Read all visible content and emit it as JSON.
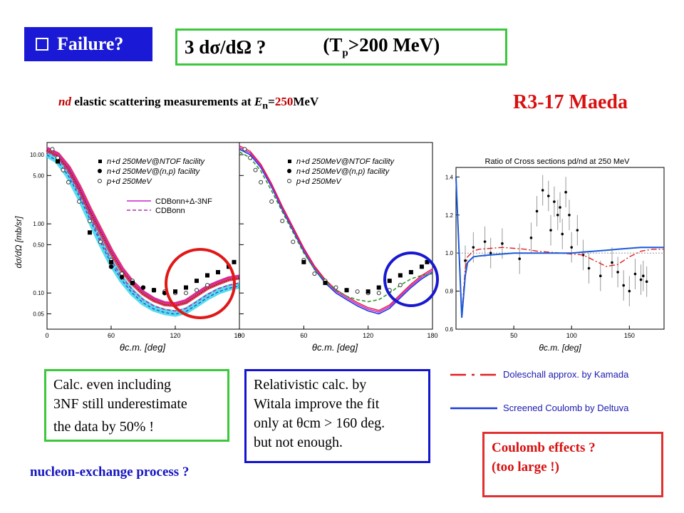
{
  "header": {
    "badge": "Failure?",
    "eq_prefix": "3 dσ/dΩ  ?",
    "tp_open": "(T",
    "tp_sub": "p",
    "tp_rest": ">200 MeV)"
  },
  "subtitle": {
    "nd": "nd",
    "text1": " elastic scattering measurements at ",
    "E": "E",
    "E_sub": "n",
    "eq": "=",
    "value": "250",
    "unit": "MeV"
  },
  "author": "R3-17 Maeda",
  "boxes": {
    "green": [
      "Calc. even including",
      "3NF still underestimate",
      "the data by 50% !"
    ],
    "blue": [
      "Relativistic calc. by",
      "Witala  improve the fit",
      "only at θcm > 160 deg.",
      "but not enough."
    ],
    "red": [
      "Coulomb effects ?",
      "(too large !)"
    ]
  },
  "nucleon": "nucleon-exchange process ?",
  "legend_right": {
    "doleschall": "Doleschall approx. by Kamada",
    "screened": "Screened Coulomb by Deltuva"
  },
  "colors": {
    "badge": "#1a1ad6",
    "green_box": "#3cc83c",
    "blue_box": "#1414d0",
    "red": "#d81010",
    "cdbonn_3nf": "#cc22cc",
    "cdbonn": "#b030b0",
    "rel_green": "#2a9a2a",
    "ratio_blue": "#1a5ad8",
    "ratio_red": "#e02020"
  },
  "chart_data": [
    {
      "type": "scatter",
      "xlabel": "θc.m. [deg]",
      "ylabel": "dσ/dΩ [mb/sr]",
      "ylog": true,
      "xlim": [
        0,
        180
      ],
      "ylim": [
        0.03,
        15
      ],
      "xticks": [
        "0",
        "60",
        "120",
        "180"
      ],
      "yticks": [
        "10.00",
        "5.00",
        "1.00",
        "0.50",
        "0.10",
        "0.05"
      ],
      "legend": {
        "ntof": "n+d 250MeV@NTOF facility",
        "np": "n+d 250MeV@(n,p) facility",
        "pd": "p+d 250MeV",
        "cdbonn_3nf": "CDBonn+Δ-3NF",
        "cdbonn": "CDBonn"
      },
      "series": [
        {
          "name": "n+d 250MeV@NTOF facility",
          "x": [
            10,
            40,
            60,
            80,
            100,
            120,
            130,
            140,
            150,
            160,
            170,
            175
          ],
          "y": [
            8.0,
            0.75,
            0.28,
            0.14,
            0.11,
            0.105,
            0.12,
            0.15,
            0.18,
            0.2,
            0.24,
            0.28
          ]
        },
        {
          "name": "n+d 250MeV@(n,p) facility",
          "x": [
            60,
            70,
            80,
            90,
            100,
            110
          ],
          "y": [
            0.24,
            0.17,
            0.14,
            0.12,
            0.11,
            0.1
          ]
        },
        {
          "name": "p+d 250MeV",
          "x": [
            5,
            10,
            15,
            20,
            30,
            40,
            50,
            60,
            70,
            80,
            90,
            100,
            110,
            120,
            130,
            140,
            150
          ],
          "y": [
            12,
            9,
            6,
            4,
            2.1,
            1.1,
            0.55,
            0.3,
            0.19,
            0.15,
            0.12,
            0.11,
            0.105,
            0.1,
            0.1,
            0.11,
            0.13
          ]
        },
        {
          "name": "CDBonn+Δ-3NF",
          "x": [
            0,
            10,
            20,
            30,
            40,
            50,
            60,
            70,
            80,
            90,
            100,
            110,
            120,
            130,
            140,
            150,
            160,
            170,
            180
          ],
          "y": [
            12,
            10,
            6.5,
            3.4,
            1.6,
            0.8,
            0.4,
            0.22,
            0.14,
            0.1,
            0.08,
            0.07,
            0.068,
            0.075,
            0.095,
            0.12,
            0.14,
            0.16,
            0.17
          ]
        },
        {
          "name": "CDBonn",
          "x": [
            0,
            10,
            20,
            30,
            40,
            50,
            60,
            70,
            80,
            90,
            100,
            110,
            120,
            130,
            140,
            150,
            160,
            170,
            180
          ],
          "y": [
            11,
            9,
            5.5,
            2.8,
            1.3,
            0.6,
            0.3,
            0.17,
            0.11,
            0.08,
            0.065,
            0.058,
            0.055,
            0.06,
            0.075,
            0.095,
            0.115,
            0.13,
            0.14
          ]
        }
      ]
    },
    {
      "type": "scatter",
      "xlabel": "θc.m. [deg]",
      "ylog": true,
      "xlim": [
        0,
        180
      ],
      "ylim": [
        0.03,
        15
      ],
      "xticks": [
        "0",
        "60",
        "120",
        "180"
      ],
      "legend": {
        "ntof": "n+d 250MeV@NTOF facility",
        "np": "n+d 250MeV@(n,p) facility",
        "pd": "p+d 250MeV"
      },
      "series": [
        {
          "name": "n+d 250MeV@NTOF facility",
          "x": [
            60,
            80,
            100,
            120,
            130,
            140,
            150,
            160,
            170,
            175
          ],
          "y": [
            0.28,
            0.14,
            0.11,
            0.105,
            0.12,
            0.15,
            0.18,
            0.2,
            0.24,
            0.28
          ]
        },
        {
          "name": "p+d 250MeV",
          "x": [
            5,
            10,
            15,
            20,
            30,
            40,
            50,
            60,
            70,
            80,
            90,
            100,
            110,
            120,
            130,
            140,
            150
          ],
          "y": [
            12,
            9,
            6,
            4,
            2.1,
            1.1,
            0.55,
            0.3,
            0.19,
            0.15,
            0.12,
            0.11,
            0.105,
            0.1,
            0.1,
            0.11,
            0.13
          ]
        },
        {
          "name": "relativistic",
          "x": [
            0,
            10,
            20,
            30,
            40,
            50,
            60,
            70,
            80,
            90,
            100,
            110,
            120,
            130,
            140,
            150,
            160,
            170,
            180
          ],
          "y": [
            12,
            10,
            6.5,
            3.4,
            1.6,
            0.8,
            0.4,
            0.22,
            0.14,
            0.1,
            0.08,
            0.065,
            0.055,
            0.05,
            0.06,
            0.085,
            0.12,
            0.16,
            0.2
          ]
        },
        {
          "name": "green-dashed",
          "x": [
            0,
            10,
            20,
            30,
            40,
            50,
            60,
            70,
            80,
            90,
            100,
            110,
            120,
            130,
            140,
            150,
            160,
            170,
            180
          ],
          "y": [
            11,
            9,
            5.8,
            3.0,
            1.5,
            0.75,
            0.38,
            0.22,
            0.15,
            0.11,
            0.09,
            0.08,
            0.075,
            0.08,
            0.1,
            0.13,
            0.16,
            0.18,
            0.19
          ]
        }
      ]
    },
    {
      "type": "scatter",
      "title": "Ratio of Cross sections pd/nd at 250 MeV",
      "xlabel": "θc.m. [deg]",
      "xlim": [
        0,
        180
      ],
      "ylim": [
        0.6,
        1.45
      ],
      "xticks": [
        "50",
        "100",
        "150"
      ],
      "yticks": [
        "0.6",
        "0.8",
        "1.0",
        "1.2",
        "1.4"
      ],
      "series": [
        {
          "name": "data",
          "x": [
            8,
            15,
            25,
            30,
            40,
            55,
            65,
            70,
            75,
            80,
            82,
            85,
            88,
            90,
            92,
            95,
            98,
            100,
            105,
            110,
            115,
            125,
            135,
            140,
            145,
            150,
            155,
            160,
            162,
            165
          ],
          "y": [
            0.96,
            1.03,
            1.06,
            1.0,
            1.05,
            0.97,
            1.08,
            1.22,
            1.33,
            1.3,
            1.12,
            1.27,
            1.2,
            1.24,
            1.1,
            1.32,
            1.2,
            1.03,
            1.12,
            0.99,
            0.92,
            0.88,
            0.95,
            0.9,
            0.83,
            0.8,
            0.89,
            0.86,
            0.88,
            0.85
          ]
        },
        {
          "name": "Doleschall approx. by Kamada",
          "x": [
            0,
            5,
            8,
            10,
            15,
            20,
            30,
            40,
            50,
            60,
            70,
            80,
            90,
            100,
            110,
            120,
            130,
            140,
            150,
            160,
            170,
            180
          ],
          "y": [
            1.4,
            0.68,
            0.92,
            0.98,
            1.01,
            1.02,
            1.025,
            1.03,
            1.025,
            1.02,
            1.01,
            1.005,
            1.0,
            0.995,
            0.99,
            0.96,
            0.93,
            0.94,
            0.98,
            1.01,
            1.02,
            1.02
          ]
        },
        {
          "name": "Screened Coulomb by Deltuva",
          "x": [
            0,
            5,
            8,
            10,
            15,
            20,
            30,
            40,
            50,
            60,
            70,
            80,
            90,
            100,
            110,
            120,
            130,
            140,
            150,
            160,
            170,
            180
          ],
          "y": [
            1.4,
            0.66,
            0.88,
            0.95,
            0.98,
            0.985,
            0.99,
            0.995,
            1.0,
            1.0,
            1.0,
            1.0,
            1.0,
            1.0,
            1.005,
            1.01,
            1.015,
            1.02,
            1.025,
            1.03,
            1.03,
            1.03
          ]
        }
      ]
    }
  ]
}
